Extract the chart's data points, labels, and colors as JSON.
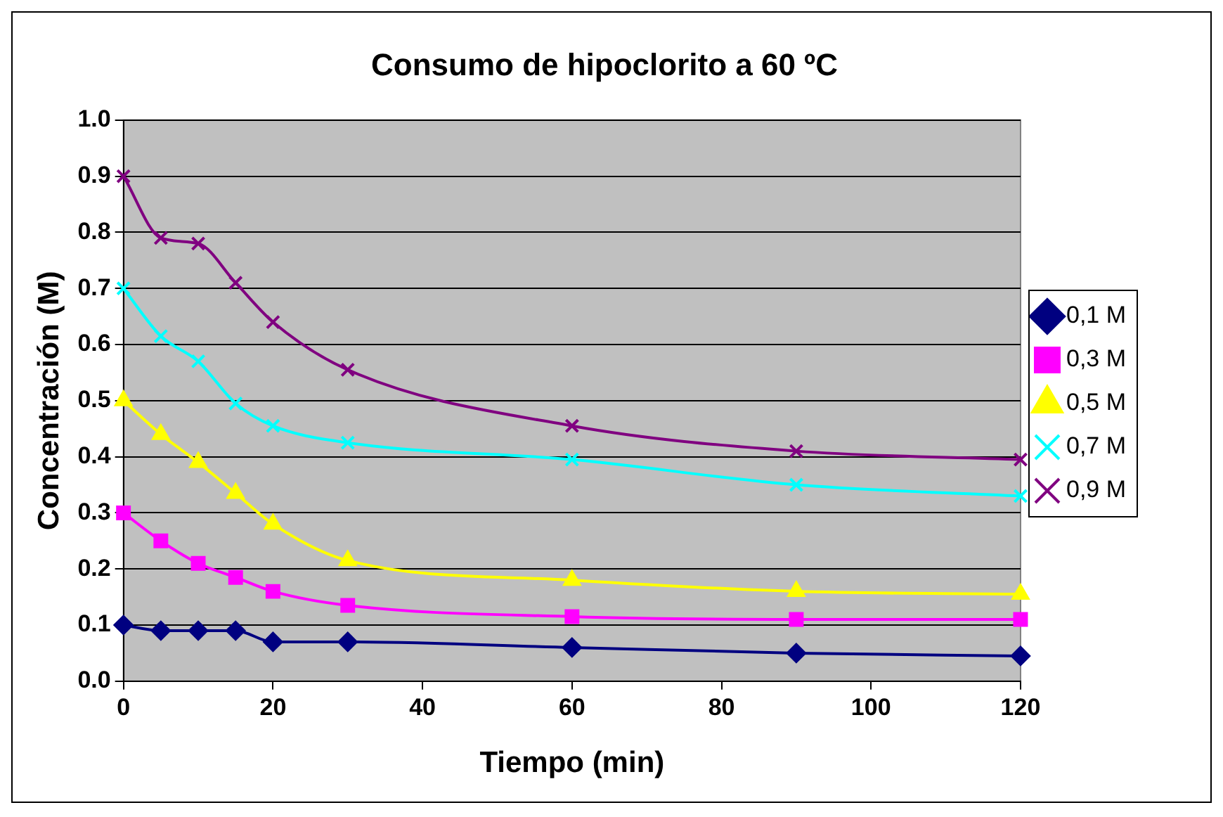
{
  "chart_data": {
    "type": "line",
    "title": "Consumo de hipoclorito a 60 ºC",
    "xlabel": "Tiempo (min)",
    "ylabel": "Concentración (M)",
    "x": [
      0,
      5,
      10,
      15,
      20,
      30,
      60,
      90,
      120
    ],
    "series": [
      {
        "name": "0,1 M",
        "color": "#000080",
        "marker": "diamond",
        "values": [
          0.1,
          0.09,
          0.09,
          0.09,
          0.07,
          0.07,
          0.06,
          0.05,
          0.045
        ]
      },
      {
        "name": "0,3 M",
        "color": "#ff00ff",
        "marker": "square",
        "values": [
          0.3,
          0.25,
          0.21,
          0.185,
          0.16,
          0.135,
          0.115,
          0.11,
          0.11
        ]
      },
      {
        "name": "0,5 M",
        "color": "#ffff00",
        "marker": "triangle",
        "values": [
          0.5,
          0.44,
          0.39,
          0.335,
          0.28,
          0.215,
          0.18,
          0.16,
          0.155
        ]
      },
      {
        "name": "0,7 M",
        "color": "#00ffff",
        "marker": "cross",
        "values": [
          0.7,
          0.615,
          0.57,
          0.495,
          0.455,
          0.425,
          0.395,
          0.35,
          0.33
        ]
      },
      {
        "name": "0,9 M",
        "color": "#800080",
        "marker": "cross",
        "values": [
          0.9,
          0.79,
          0.78,
          0.71,
          0.64,
          0.555,
          0.455,
          0.41,
          0.395
        ]
      }
    ],
    "xlim": [
      0,
      120
    ],
    "xticks": [
      0,
      20,
      40,
      60,
      80,
      100,
      120
    ],
    "ylim": [
      0,
      1
    ],
    "yticks": [
      {
        "value": 0,
        "label": "0.0"
      },
      0.1,
      0.2,
      0.3,
      0.4,
      0.5,
      0.6,
      0.7,
      0.8,
      0.9,
      {
        "value": 1,
        "label": "1.0"
      }
    ],
    "grid": "y",
    "legend": "right",
    "line_style": "solid"
  }
}
